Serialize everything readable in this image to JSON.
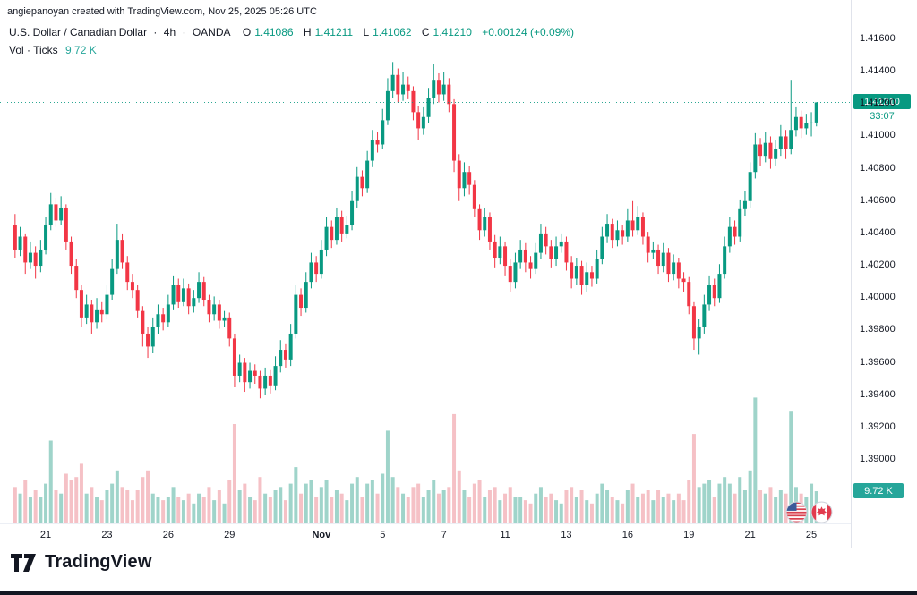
{
  "attribution": "angiepanoyan created with TradingView.com, Nov 25, 2025 05:26 UTC",
  "legend": {
    "symbol": "U.S. Dollar / Canadian Dollar",
    "sep": "·",
    "interval": "4h",
    "exchange": "OANDA",
    "o_label": "O",
    "o": "1.41086",
    "h_label": "H",
    "h": "1.41211",
    "l_label": "L",
    "l": "1.41062",
    "c_label": "C",
    "c": "1.41210",
    "change": "+0.00124 (+0.09%)",
    "volume_label": "Vol · Ticks",
    "volume_value": "9.72 K"
  },
  "axes": {
    "price_labels": [
      "1.41600",
      "1.41400",
      "1.41200",
      "1.41000",
      "1.40800",
      "1.40600",
      "1.40400",
      "1.40200",
      "1.40000",
      "1.39800",
      "1.39600",
      "1.39400",
      "1.39200",
      "1.39000"
    ],
    "price_badge": "1.41210",
    "countdown": "33:07",
    "volume_badge": "9.72 K"
  },
  "logo": {
    "text": "TradingView"
  },
  "colors": {
    "up": "#089981",
    "down": "#f23645",
    "volume_up": "#9fd4ca",
    "volume_down": "#f5c1c6",
    "badge_price_bg": "#089981",
    "badge_volume_bg": "#26a69a",
    "text": "#131722"
  },
  "chart_data": {
    "type": "candlestick",
    "title": "U.S. Dollar / Canadian Dollar, 4h, OANDA",
    "ylabel": "USD/CAD price",
    "volume_unit": "K ticks",
    "price_axis": {
      "min": 1.39,
      "max": 1.416,
      "tick_step": 0.002
    },
    "last": {
      "o": 1.41086,
      "h": 1.41211,
      "l": 1.41062,
      "c": 1.4121,
      "change": "+0.00124",
      "change_pct": "+0.09%",
      "volume_k": 9.72,
      "countdown": "33:07"
    },
    "x_ticks": [
      {
        "label": "21",
        "i": 6
      },
      {
        "label": "23",
        "i": 18
      },
      {
        "label": "26",
        "i": 30
      },
      {
        "label": "29",
        "i": 42
      },
      {
        "label": "Nov",
        "i": 60
      },
      {
        "label": "5",
        "i": 72
      },
      {
        "label": "7",
        "i": 84
      },
      {
        "label": "11",
        "i": 96
      },
      {
        "label": "13",
        "i": 108
      },
      {
        "label": "16",
        "i": 120
      },
      {
        "label": "19",
        "i": 132
      },
      {
        "label": "21",
        "i": 144
      },
      {
        "label": "25",
        "i": 156
      }
    ],
    "candles": [
      [
        1.4045,
        1.4052,
        1.4025,
        1.403,
        11
      ],
      [
        1.403,
        1.4044,
        1.4026,
        1.4038,
        9
      ],
      [
        1.4038,
        1.404,
        1.4015,
        1.4022,
        13
      ],
      [
        1.4022,
        1.4035,
        1.4018,
        1.4028,
        8
      ],
      [
        1.4028,
        1.4032,
        1.4012,
        1.402,
        10
      ],
      [
        1.402,
        1.4036,
        1.4016,
        1.403,
        8
      ],
      [
        1.403,
        1.405,
        1.4027,
        1.4045,
        12
      ],
      [
        1.4045,
        1.4065,
        1.4042,
        1.4058,
        25
      ],
      [
        1.4058,
        1.4062,
        1.4044,
        1.4048,
        10
      ],
      [
        1.4048,
        1.4063,
        1.4045,
        1.4056,
        9
      ],
      [
        1.4056,
        1.4058,
        1.403,
        1.4035,
        15
      ],
      [
        1.4035,
        1.4038,
        1.4015,
        1.402,
        13
      ],
      [
        1.402,
        1.4024,
        1.4,
        1.4005,
        14
      ],
      [
        1.4005,
        1.4008,
        1.3982,
        1.3988,
        18
      ],
      [
        1.3988,
        1.4002,
        1.3984,
        1.3996,
        9
      ],
      [
        1.3996,
        1.3999,
        1.3978,
        1.3985,
        11
      ],
      [
        1.3985,
        1.4,
        1.3981,
        1.3993,
        8
      ],
      [
        1.3993,
        1.3998,
        1.3985,
        1.399,
        7
      ],
      [
        1.399,
        1.4008,
        1.3987,
        1.4002,
        10
      ],
      [
        1.4002,
        1.4024,
        1.3999,
        1.4018,
        12
      ],
      [
        1.4018,
        1.4046,
        1.4015,
        1.4036,
        16
      ],
      [
        1.4036,
        1.404,
        1.4018,
        1.4022,
        11
      ],
      [
        1.4022,
        1.4026,
        1.4005,
        1.401,
        10
      ],
      [
        1.401,
        1.4015,
        1.4,
        1.4005,
        7
      ],
      [
        1.4005,
        1.4008,
        1.3988,
        1.3992,
        10
      ],
      [
        1.3992,
        1.3995,
        1.397,
        1.3978,
        14
      ],
      [
        1.3978,
        1.3982,
        1.3963,
        1.397,
        16
      ],
      [
        1.397,
        1.3988,
        1.3966,
        1.3982,
        9
      ],
      [
        1.3982,
        1.3996,
        1.3978,
        1.399,
        8
      ],
      [
        1.399,
        1.3994,
        1.398,
        1.3985,
        7
      ],
      [
        1.3985,
        1.4002,
        1.3982,
        1.3996,
        8
      ],
      [
        1.3996,
        1.4014,
        1.3993,
        1.4008,
        11
      ],
      [
        1.4008,
        1.4012,
        1.3994,
        1.3998,
        8
      ],
      [
        1.3998,
        1.4012,
        1.3995,
        1.4006,
        7
      ],
      [
        1.4006,
        1.4009,
        1.399,
        1.3995,
        9
      ],
      [
        1.3995,
        1.4005,
        1.3991,
        1.4,
        6
      ],
      [
        1.4,
        1.4016,
        1.3997,
        1.401,
        9
      ],
      [
        1.401,
        1.4013,
        1.3995,
        1.3999,
        8
      ],
      [
        1.3999,
        1.4002,
        1.3985,
        1.399,
        11
      ],
      [
        1.399,
        1.4001,
        1.3986,
        1.3996,
        7
      ],
      [
        1.3996,
        1.3999,
        1.3981,
        1.3986,
        10
      ],
      [
        1.3986,
        1.3992,
        1.3982,
        1.3988,
        6
      ],
      [
        1.3988,
        1.3991,
        1.397,
        1.3975,
        13
      ],
      [
        1.3975,
        1.3978,
        1.3945,
        1.3952,
        30
      ],
      [
        1.3952,
        1.3965,
        1.3948,
        1.396,
        10
      ],
      [
        1.396,
        1.3963,
        1.3942,
        1.3948,
        12
      ],
      [
        1.3948,
        1.396,
        1.3944,
        1.3955,
        8
      ],
      [
        1.3955,
        1.3959,
        1.3947,
        1.3952,
        7
      ],
      [
        1.3952,
        1.3955,
        1.3938,
        1.3944,
        14
      ],
      [
        1.3944,
        1.3957,
        1.394,
        1.3952,
        9
      ],
      [
        1.3952,
        1.3956,
        1.3941,
        1.3946,
        8
      ],
      [
        1.3946,
        1.3964,
        1.3943,
        1.3958,
        10
      ],
      [
        1.3958,
        1.3974,
        1.3954,
        1.3968,
        11
      ],
      [
        1.3968,
        1.3972,
        1.3957,
        1.3962,
        7
      ],
      [
        1.3962,
        1.3984,
        1.3958,
        1.3978,
        12
      ],
      [
        1.3978,
        1.4008,
        1.3975,
        1.4002,
        17
      ],
      [
        1.4002,
        1.4006,
        1.3989,
        1.3994,
        9
      ],
      [
        1.3994,
        1.4016,
        1.3991,
        1.401,
        12
      ],
      [
        1.401,
        1.4028,
        1.4006,
        1.4022,
        13
      ],
      [
        1.4022,
        1.4026,
        1.401,
        1.4015,
        8
      ],
      [
        1.4015,
        1.4036,
        1.4012,
        1.403,
        11
      ],
      [
        1.403,
        1.405,
        1.4026,
        1.4044,
        13
      ],
      [
        1.4044,
        1.4048,
        1.4031,
        1.4036,
        8
      ],
      [
        1.4036,
        1.4056,
        1.4033,
        1.405,
        10
      ],
      [
        1.405,
        1.4054,
        1.4035,
        1.404,
        9
      ],
      [
        1.404,
        1.4051,
        1.4037,
        1.4045,
        7
      ],
      [
        1.4045,
        1.4066,
        1.4042,
        1.406,
        12
      ],
      [
        1.406,
        1.4081,
        1.4056,
        1.4075,
        14
      ],
      [
        1.4075,
        1.4079,
        1.4063,
        1.4068,
        8
      ],
      [
        1.4068,
        1.4091,
        1.4065,
        1.4085,
        12
      ],
      [
        1.4085,
        1.4104,
        1.4081,
        1.4098,
        13
      ],
      [
        1.4098,
        1.4103,
        1.409,
        1.4095,
        9
      ],
      [
        1.4095,
        1.4117,
        1.4092,
        1.411,
        15
      ],
      [
        1.411,
        1.4136,
        1.4107,
        1.4128,
        28
      ],
      [
        1.4128,
        1.4146,
        1.4124,
        1.4138,
        14
      ],
      [
        1.4138,
        1.4142,
        1.4121,
        1.4126,
        11
      ],
      [
        1.4126,
        1.414,
        1.4122,
        1.4132,
        9
      ],
      [
        1.4132,
        1.4137,
        1.4123,
        1.4128,
        8
      ],
      [
        1.4128,
        1.4131,
        1.411,
        1.4115,
        11
      ],
      [
        1.4115,
        1.4119,
        1.4098,
        1.4105,
        12
      ],
      [
        1.4105,
        1.4118,
        1.4101,
        1.4112,
        8
      ],
      [
        1.4112,
        1.413,
        1.4108,
        1.4124,
        10
      ],
      [
        1.4124,
        1.4145,
        1.412,
        1.4135,
        13
      ],
      [
        1.4135,
        1.4139,
        1.4121,
        1.4126,
        9
      ],
      [
        1.4126,
        1.414,
        1.4122,
        1.4132,
        10
      ],
      [
        1.4132,
        1.4136,
        1.4115,
        1.412,
        11
      ],
      [
        1.412,
        1.4123,
        1.4078,
        1.4085,
        33
      ],
      [
        1.4085,
        1.4089,
        1.406,
        1.4068,
        16
      ],
      [
        1.4068,
        1.4084,
        1.4063,
        1.4078,
        10
      ],
      [
        1.4078,
        1.4082,
        1.4064,
        1.407,
        8
      ],
      [
        1.407,
        1.4073,
        1.405,
        1.4055,
        12
      ],
      [
        1.4055,
        1.4058,
        1.4036,
        1.4042,
        13
      ],
      [
        1.4042,
        1.4056,
        1.4038,
        1.405,
        8
      ],
      [
        1.405,
        1.4053,
        1.403,
        1.4035,
        10
      ],
      [
        1.4035,
        1.4039,
        1.4019,
        1.4025,
        11
      ],
      [
        1.4025,
        1.4038,
        1.4021,
        1.4032,
        7
      ],
      [
        1.4032,
        1.4035,
        1.4014,
        1.402,
        9
      ],
      [
        1.402,
        1.4024,
        1.4004,
        1.401,
        11
      ],
      [
        1.401,
        1.4028,
        1.4006,
        1.4022,
        8
      ],
      [
        1.4022,
        1.4036,
        1.4018,
        1.403,
        8
      ],
      [
        1.403,
        1.4034,
        1.4016,
        1.4022,
        7
      ],
      [
        1.4022,
        1.4026,
        1.4012,
        1.4018,
        6
      ],
      [
        1.4018,
        1.4034,
        1.4015,
        1.4028,
        9
      ],
      [
        1.4028,
        1.4046,
        1.4024,
        1.404,
        11
      ],
      [
        1.404,
        1.4044,
        1.4027,
        1.4032,
        8
      ],
      [
        1.4032,
        1.4036,
        1.4019,
        1.4024,
        9
      ],
      [
        1.4024,
        1.4038,
        1.402,
        1.4032,
        7
      ],
      [
        1.4032,
        1.404,
        1.4028,
        1.4035,
        6
      ],
      [
        1.4035,
        1.4038,
        1.4017,
        1.4022,
        10
      ],
      [
        1.4022,
        1.4026,
        1.4006,
        1.4012,
        11
      ],
      [
        1.4012,
        1.4025,
        1.4008,
        1.402,
        8
      ],
      [
        1.402,
        1.4023,
        1.4002,
        1.4008,
        10
      ],
      [
        1.4008,
        1.4022,
        1.4004,
        1.4016,
        7
      ],
      [
        1.4016,
        1.402,
        1.4007,
        1.4012,
        6
      ],
      [
        1.4012,
        1.403,
        1.4009,
        1.4024,
        9
      ],
      [
        1.4024,
        1.4044,
        1.4021,
        1.4038,
        12
      ],
      [
        1.4038,
        1.4052,
        1.4034,
        1.4046,
        10
      ],
      [
        1.4046,
        1.4049,
        1.4031,
        1.4036,
        8
      ],
      [
        1.4036,
        1.4048,
        1.4032,
        1.4042,
        7
      ],
      [
        1.4042,
        1.4045,
        1.4033,
        1.4038,
        6
      ],
      [
        1.4038,
        1.4055,
        1.4035,
        1.4048,
        10
      ],
      [
        1.4048,
        1.406,
        1.4038,
        1.4042,
        12
      ],
      [
        1.4042,
        1.4057,
        1.4039,
        1.405,
        8
      ],
      [
        1.405,
        1.4053,
        1.4033,
        1.4038,
        9
      ],
      [
        1.4038,
        1.4041,
        1.4022,
        1.4028,
        10
      ],
      [
        1.4028,
        1.4035,
        1.4024,
        1.403,
        7
      ],
      [
        1.403,
        1.4033,
        1.4015,
        1.402,
        10
      ],
      [
        1.402,
        1.4034,
        1.4016,
        1.4028,
        8
      ],
      [
        1.4028,
        1.4031,
        1.401,
        1.4015,
        9
      ],
      [
        1.4015,
        1.4027,
        1.4011,
        1.4022,
        7
      ],
      [
        1.4022,
        1.4025,
        1.4006,
        1.4012,
        9
      ],
      [
        1.4012,
        1.4016,
        1.4004,
        1.401,
        7
      ],
      [
        1.401,
        1.4013,
        1.399,
        1.3995,
        13
      ],
      [
        1.3995,
        1.3998,
        1.3968,
        1.3975,
        27
      ],
      [
        1.3975,
        1.3987,
        1.3965,
        1.3982,
        11
      ],
      [
        1.3982,
        1.4002,
        1.3978,
        1.3996,
        12
      ],
      [
        1.3996,
        1.4014,
        1.3992,
        1.4008,
        13
      ],
      [
        1.4008,
        1.4012,
        1.3995,
        1.4,
        8
      ],
      [
        1.4,
        1.4021,
        1.3997,
        1.4015,
        12
      ],
      [
        1.4015,
        1.4038,
        1.4012,
        1.4032,
        14
      ],
      [
        1.4032,
        1.405,
        1.4028,
        1.4044,
        12
      ],
      [
        1.4044,
        1.4048,
        1.4033,
        1.4038,
        9
      ],
      [
        1.4038,
        1.4061,
        1.4035,
        1.4055,
        14
      ],
      [
        1.4055,
        1.4066,
        1.4051,
        1.406,
        10
      ],
      [
        1.406,
        1.4084,
        1.4056,
        1.4078,
        16
      ],
      [
        1.4078,
        1.4102,
        1.4074,
        1.4095,
        38
      ],
      [
        1.4095,
        1.4099,
        1.4082,
        1.4088,
        10
      ],
      [
        1.4088,
        1.4103,
        1.4084,
        1.4096,
        9
      ],
      [
        1.4096,
        1.41,
        1.408,
        1.4086,
        11
      ],
      [
        1.4086,
        1.4098,
        1.4082,
        1.4092,
        8
      ],
      [
        1.4092,
        1.4107,
        1.4088,
        1.41,
        10
      ],
      [
        1.41,
        1.4104,
        1.4086,
        1.4092,
        9
      ],
      [
        1.4092,
        1.4135,
        1.4089,
        1.4104,
        34
      ],
      [
        1.4104,
        1.4118,
        1.41,
        1.4112,
        11
      ],
      [
        1.4112,
        1.4116,
        1.4099,
        1.4105,
        9
      ],
      [
        1.4105,
        1.4114,
        1.4101,
        1.4108,
        8
      ],
      [
        1.4108,
        1.4115,
        1.41,
        1.41086,
        12
      ],
      [
        1.41086,
        1.41211,
        1.41062,
        1.4121,
        9.72
      ]
    ]
  }
}
